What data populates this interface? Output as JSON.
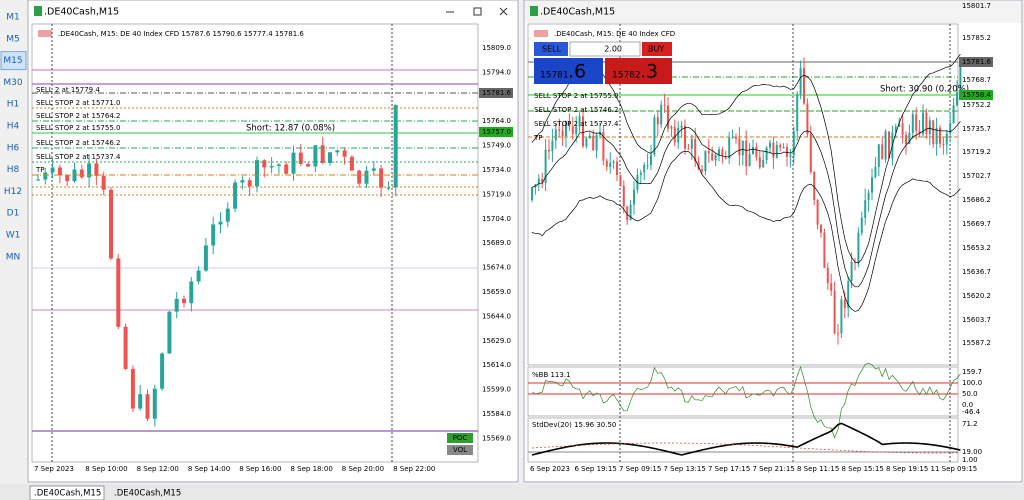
{
  "toolbar": {
    "timeframes": [
      "M1",
      "M5",
      "M15",
      "M30",
      "H1",
      "H4",
      "H6",
      "H8",
      "H12",
      "D1",
      "W1",
      "MN"
    ],
    "active": 2
  },
  "windows": [
    {
      "title": ".DE40Cash,M15",
      "header": ".DE40Cash, M15:  DE 40 Index CFD  15787.6 15790.6 15777.4 15781.6",
      "price_axis": [
        "15809.0",
        "15794.0",
        "15764.0",
        "15749.0",
        "15734.0",
        "15719.0",
        "15704.0",
        "15689.0",
        "15674.0",
        "15659.0",
        "15644.0",
        "15629.0",
        "15614.0",
        "15599.0",
        "15584.0",
        "15569.0"
      ],
      "price_tags": [
        "15781.6",
        "15757.0"
      ],
      "orders": [
        "SELL 2 at 15779.4",
        "SELL STOP 2 at 15771.0",
        "SELL STOP 2 at 15764.2",
        "SELL STOP 2 at 15755.0",
        "SELL STOP 2 at 15746.2",
        "SELL STOP 2 at 15737.4",
        "TP"
      ],
      "short_label": "Short: 12.87  (0.08%)",
      "buttons": [
        "POC",
        "VOL"
      ],
      "time_axis": [
        "7 Sep 2023",
        "8 Sep 10:00",
        "8 Sep 12:00",
        "8 Sep 14:00",
        "8 Sep 16:00",
        "8 Sep 18:00",
        "8 Sep 20:00",
        "8 Sep 22:00"
      ]
    },
    {
      "title": ".DE40Cash,M15",
      "header": ".DE40Cash, M15:  DE 40 Index CFD",
      "trade_panel": {
        "sell": "SELL",
        "lots": "2.00",
        "buy": "BUY",
        "bid_main": "15781",
        "bid_frac": ".6",
        "ask_main": "15782",
        "ask_frac": ".3"
      },
      "price_axis": [
        "15801.7",
        "15785.2",
        "15768.7",
        "15752.2",
        "15735.7",
        "15719.2",
        "15702.7",
        "15686.2",
        "15669.7",
        "15653.2",
        "15636.7",
        "15620.2",
        "15603.7",
        "15587.2"
      ],
      "price_tags": [
        "15781.6",
        "15758.4"
      ],
      "orders": [
        "SELL STOP 2 at 15755.0",
        "SELL STOP 2 at 15746.2",
        "SELL STOP 2 at 15737.4",
        "TP"
      ],
      "short_label": "Short: 30.90  (0.20%)",
      "indicators": [
        {
          "label": "%BB 113.1",
          "axis": [
            "159.7",
            "100.0",
            "50.0",
            "0.0",
            "-46.4"
          ]
        },
        {
          "label": "StdDev(20) 15.96 30.50",
          "axis": [
            "71.2",
            "19.00",
            "1.00"
          ]
        }
      ],
      "time_axis": [
        "6 Sep 2023",
        "6 Sep 19:15",
        "7 Sep 09:15",
        "7 Sep 13:15",
        "7 Sep 17:15",
        "7 Sep 21:15",
        "8 Sep 11:15",
        "8 Sep 15:15",
        "8 Sep 19:15",
        "11 Sep 09:15"
      ]
    }
  ],
  "tabs": [
    ".DE40Cash,M15",
    ".DE40Cash,M15"
  ]
}
